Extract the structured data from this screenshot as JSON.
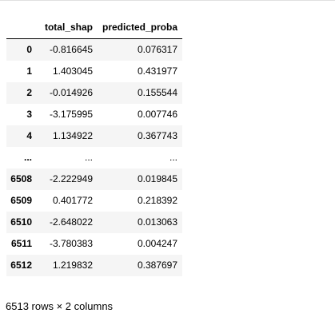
{
  "table": {
    "index_header": "",
    "columns": [
      "total_shap",
      "predicted_proba"
    ],
    "rows": [
      {
        "index": "0",
        "total_shap": "-0.816645",
        "predicted_proba": "0.076317"
      },
      {
        "index": "1",
        "total_shap": "1.403045",
        "predicted_proba": "0.431977"
      },
      {
        "index": "2",
        "total_shap": "-0.014926",
        "predicted_proba": "0.155544"
      },
      {
        "index": "3",
        "total_shap": "-3.175995",
        "predicted_proba": "0.007746"
      },
      {
        "index": "4",
        "total_shap": "1.134922",
        "predicted_proba": "0.367743"
      },
      {
        "index": "...",
        "total_shap": "...",
        "predicted_proba": "..."
      },
      {
        "index": "6508",
        "total_shap": "-2.222949",
        "predicted_proba": "0.019845"
      },
      {
        "index": "6509",
        "total_shap": "0.401772",
        "predicted_proba": "0.218392"
      },
      {
        "index": "6510",
        "total_shap": "-2.648022",
        "predicted_proba": "0.013063"
      },
      {
        "index": "6511",
        "total_shap": "-3.780383",
        "predicted_proba": "0.004247"
      },
      {
        "index": "6512",
        "total_shap": "1.219832",
        "predicted_proba": "0.387697"
      }
    ]
  },
  "summary": "6513 rows × 2 columns",
  "colors": {
    "stripe": "#f5f5f5",
    "header_rule": "#000000",
    "top_rule": "#e0e0e0"
  }
}
